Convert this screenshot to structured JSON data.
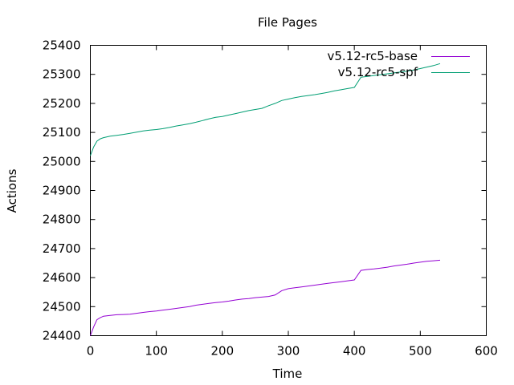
{
  "chart_data": {
    "type": "line",
    "title": "File Pages",
    "xlabel": "Time",
    "ylabel": "Actions",
    "xlim": [
      0,
      600
    ],
    "ylim": [
      24400,
      25400
    ],
    "xticks": [
      0,
      100,
      200,
      300,
      400,
      500,
      600
    ],
    "yticks": [
      24400,
      24500,
      24600,
      24700,
      24800,
      24900,
      25000,
      25100,
      25200,
      25300,
      25400
    ],
    "grid": false,
    "legend_position": "top-right",
    "series": [
      {
        "name": "v5.12-rc5-base",
        "color": "#9400d3",
        "x": [
          0,
          5,
          10,
          15,
          20,
          30,
          40,
          50,
          60,
          70,
          80,
          90,
          100,
          110,
          120,
          130,
          140,
          150,
          160,
          170,
          180,
          190,
          200,
          210,
          220,
          230,
          240,
          250,
          260,
          270,
          280,
          290,
          300,
          310,
          320,
          330,
          340,
          350,
          360,
          370,
          380,
          390,
          400,
          410,
          420,
          430,
          440,
          450,
          460,
          470,
          480,
          490,
          500,
          510,
          520,
          530
        ],
        "y": [
          24400,
          24430,
          24455,
          24462,
          24467,
          24470,
          24472,
          24473,
          24474,
          24477,
          24480,
          24483,
          24485,
          24488,
          24491,
          24494,
          24497,
          24500,
          24505,
          24508,
          24511,
          24514,
          24516,
          24519,
          24523,
          24526,
          24528,
          24531,
          24533,
          24535,
          24540,
          24555,
          24562,
          24565,
          24568,
          24571,
          24574,
          24577,
          24580,
          24583,
          24586,
          24589,
          24592,
          24625,
          24628,
          24630,
          24633,
          24636,
          24640,
          24643,
          24646,
          24650,
          24653,
          24656,
          24658,
          24660
        ]
      },
      {
        "name": "v5.12-rc5-spf",
        "color": "#009e73",
        "x": [
          0,
          5,
          10,
          15,
          20,
          30,
          40,
          50,
          60,
          70,
          80,
          90,
          100,
          110,
          120,
          130,
          140,
          150,
          160,
          170,
          180,
          190,
          200,
          210,
          220,
          230,
          240,
          250,
          260,
          270,
          280,
          290,
          300,
          310,
          320,
          330,
          340,
          350,
          360,
          370,
          380,
          390,
          400,
          410,
          420,
          430,
          440,
          450,
          460,
          470,
          480,
          490,
          500,
          510,
          520,
          530
        ],
        "y": [
          25020,
          25050,
          25070,
          25078,
          25082,
          25087,
          25090,
          25093,
          25097,
          25101,
          25105,
          25108,
          25110,
          25113,
          25117,
          25122,
          25126,
          25130,
          25135,
          25141,
          25147,
          25152,
          25155,
          25160,
          25165,
          25170,
          25175,
          25179,
          25183,
          25192,
          25200,
          25210,
          25215,
          25220,
          25224,
          25227,
          25230,
          25234,
          25238,
          25243,
          25247,
          25251,
          25255,
          25290,
          25293,
          25296,
          25299,
          25302,
          25305,
          25308,
          25311,
          25315,
          25320,
          25325,
          25330,
          25337
        ]
      }
    ]
  }
}
